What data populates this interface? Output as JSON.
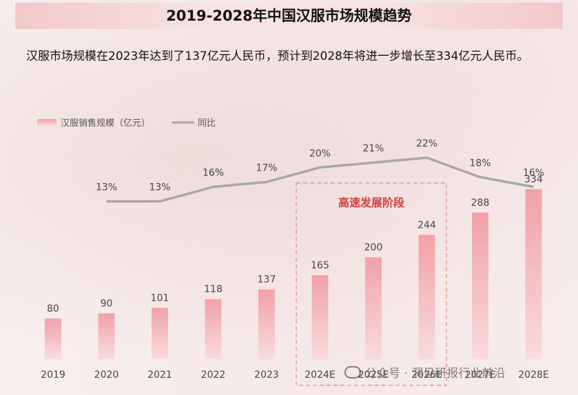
{
  "header": {
    "title": "2019-2028年中国汉服市场规模趋势",
    "description": "汉服市场规模在2023年达到了137亿元人民币，预计到2028年将进一步增长至334亿元人民币。"
  },
  "colors": {
    "bar": "#f1a1a6",
    "bar_light": "#f9dcde",
    "line": "#a6a6a6",
    "highlight_border": "#e59a9e",
    "highlight_text": "#d23c3c"
  },
  "chart_data": {
    "type": "bar",
    "categories": [
      "2019",
      "2020",
      "2021",
      "2022",
      "2023",
      "2024E",
      "2025E",
      "2026E",
      "2027E",
      "2028E"
    ],
    "series": [
      {
        "name": "汉服销售规模（亿元）",
        "type": "bar",
        "values": [
          80,
          90,
          101,
          118,
          137,
          165,
          200,
          244,
          288,
          334
        ]
      },
      {
        "name": "同比",
        "type": "line",
        "values": [
          null,
          13,
          13,
          16,
          17,
          20,
          21,
          22,
          18,
          16
        ],
        "labels": [
          "",
          "13%",
          "13%",
          "16%",
          "17%",
          "20%",
          "21%",
          "22%",
          "18%",
          "16%"
        ]
      }
    ],
    "legend": {
      "position": "top-left"
    },
    "annotation": {
      "text": "高速发展阶段",
      "range": [
        "2024E",
        "2026E"
      ]
    },
    "ylim_bar": [
      0,
      500
    ],
    "ylim_line": [
      -10,
      25
    ]
  },
  "watermark": {
    "text": "公众号 · 洞见研报行业前沿"
  }
}
